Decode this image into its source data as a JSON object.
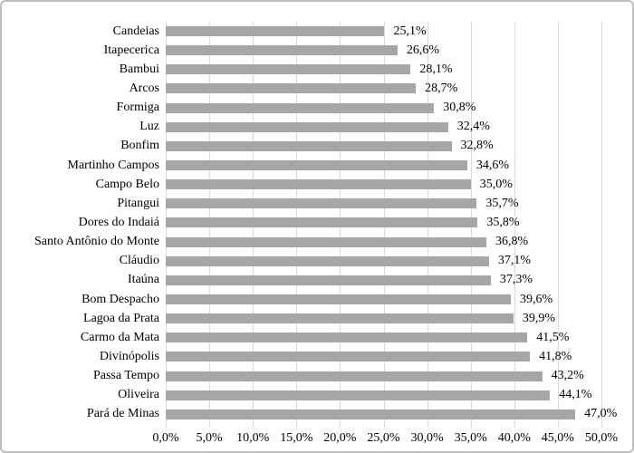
{
  "chart_data": {
    "type": "bar",
    "orientation": "horizontal",
    "title": "",
    "xlabel": "",
    "ylabel": "",
    "xlim": [
      0,
      50
    ],
    "grid": true,
    "bar_color": "#a6a6a6",
    "gridline_color": "#d9d9d9",
    "text_color": "#000000",
    "frame_border_color": "#bfbfbf",
    "categories": [
      "Candeias",
      "Itapecerica",
      "Bambui",
      "Arcos",
      "Formiga",
      "Luz",
      "Bonfim",
      "Martinho Campos",
      "Campo Belo",
      "Pitangui",
      "Dores do Indaiá",
      "Santo Antônio do Monte",
      "Cláudio",
      "Itaúna",
      "Bom Despacho",
      "Lagoa da Prata",
      "Carmo da Mata",
      "Divinópolis",
      "Passa Tempo",
      "Oliveira",
      "Pará de Minas"
    ],
    "values": [
      25.1,
      26.6,
      28.1,
      28.7,
      30.8,
      32.4,
      32.8,
      34.6,
      35.0,
      35.7,
      35.8,
      36.8,
      37.1,
      37.3,
      39.6,
      39.9,
      41.5,
      41.8,
      43.2,
      44.1,
      47.0
    ],
    "value_labels": [
      "25,1%",
      "26,6%",
      "28,1%",
      "28,7%",
      "30,8%",
      "32,4%",
      "32,8%",
      "34,6%",
      "35,0%",
      "35,7%",
      "35,8%",
      "36,8%",
      "37,1%",
      "37,3%",
      "39,6%",
      "39,9%",
      "41,5%",
      "41,8%",
      "43,2%",
      "44,1%",
      "47,0%"
    ],
    "x_ticks": [
      "0,0%",
      "5,0%",
      "10,0%",
      "15,0%",
      "20,0%",
      "25,0%",
      "30,0%",
      "35,0%",
      "40,0%",
      "45,0%",
      "50,0%"
    ],
    "legend": null
  }
}
